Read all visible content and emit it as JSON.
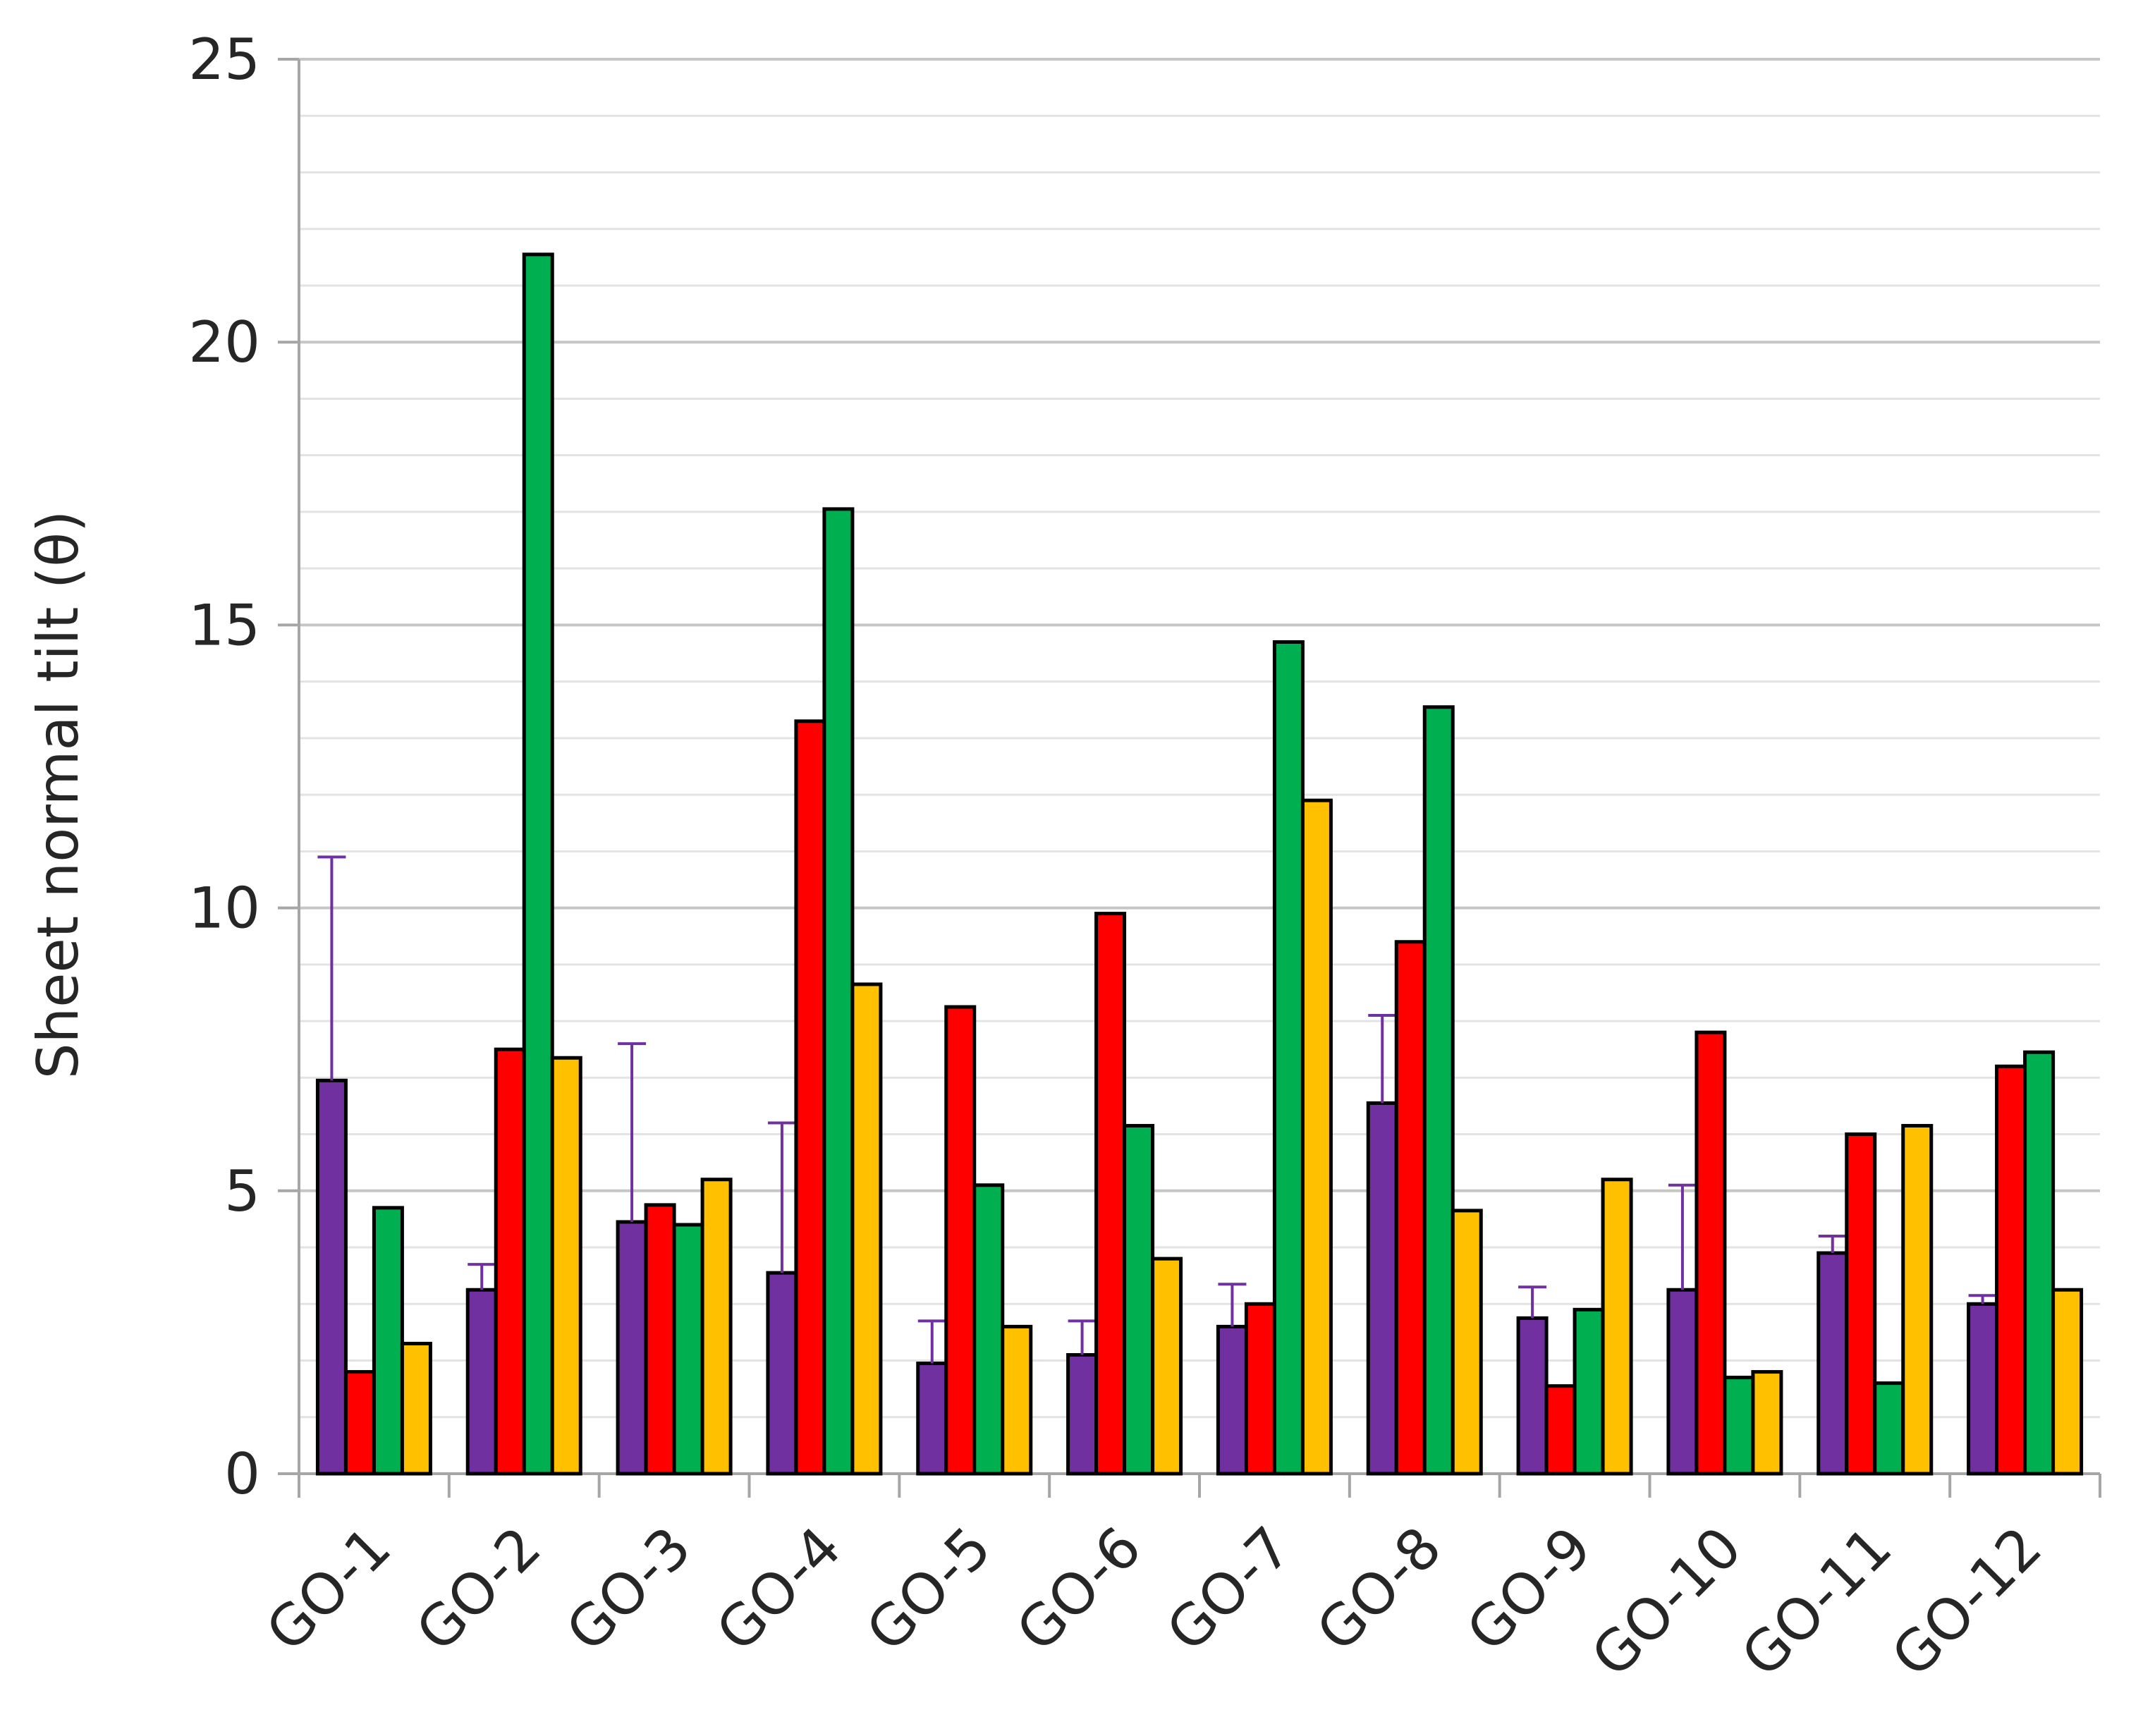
{
  "chart_data": {
    "type": "bar",
    "title": "",
    "xlabel": "",
    "ylabel": "Sheet normal tilt (θ)",
    "ylim": [
      0,
      25
    ],
    "yticks": [
      0,
      5,
      10,
      15,
      20,
      25
    ],
    "minor_grid_step": 1,
    "grid": true,
    "legend": "none",
    "categories": [
      "GO-1",
      "GO-2",
      "GO-3",
      "GO-4",
      "GO-5",
      "GO-6",
      "GO-7",
      "GO-8",
      "GO-9",
      "GO-10",
      "GO-11",
      "GO-12"
    ],
    "series": [
      {
        "color": "#7030A0",
        "values": [
          6.95,
          3.25,
          4.45,
          3.55,
          1.95,
          2.1,
          2.6,
          6.55,
          2.75,
          3.25,
          3.9,
          3.0
        ],
        "error_upper": [
          10.9,
          3.7,
          7.6,
          6.2,
          2.7,
          2.7,
          3.35,
          8.1,
          3.3,
          5.1,
          4.2,
          3.15
        ]
      },
      {
        "color": "#FF0000",
        "values": [
          1.8,
          7.5,
          4.75,
          13.3,
          8.25,
          9.9,
          3.0,
          9.4,
          1.55,
          7.8,
          6.0,
          7.2
        ]
      },
      {
        "color": "#00B050",
        "values": [
          4.7,
          21.55,
          4.4,
          17.05,
          5.1,
          6.15,
          14.7,
          13.55,
          2.9,
          1.7,
          1.6,
          7.45
        ]
      },
      {
        "color": "#FFC000",
        "values": [
          2.3,
          7.35,
          5.2,
          8.65,
          2.6,
          3.8,
          11.9,
          4.65,
          5.2,
          1.8,
          6.15,
          3.25
        ]
      }
    ]
  }
}
